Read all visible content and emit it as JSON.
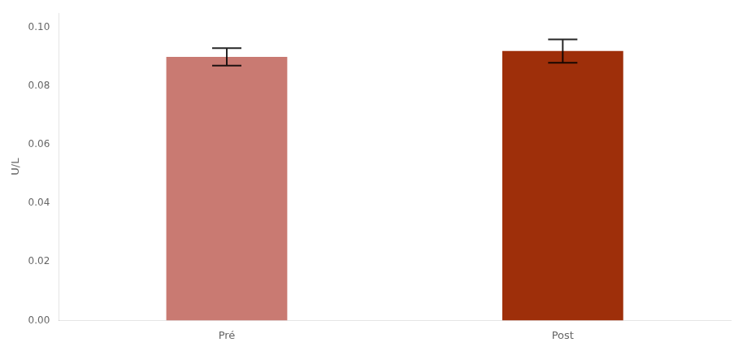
{
  "chart_data": {
    "type": "bar",
    "categories": [
      "Pré",
      "Post"
    ],
    "values": [
      0.09,
      0.092
    ],
    "errors": [
      0.003,
      0.004
    ],
    "colors": [
      "#c97a72",
      "#9e2f0a"
    ],
    "ylabel": "U/L",
    "ylim": [
      0.0,
      0.105
    ],
    "yticks": [
      {
        "value": 0.0,
        "label": "0.00"
      },
      0.02,
      0.04,
      0.06,
      0.08,
      {
        "value": 0.1,
        "label": "0.10"
      }
    ],
    "grid": false
  }
}
